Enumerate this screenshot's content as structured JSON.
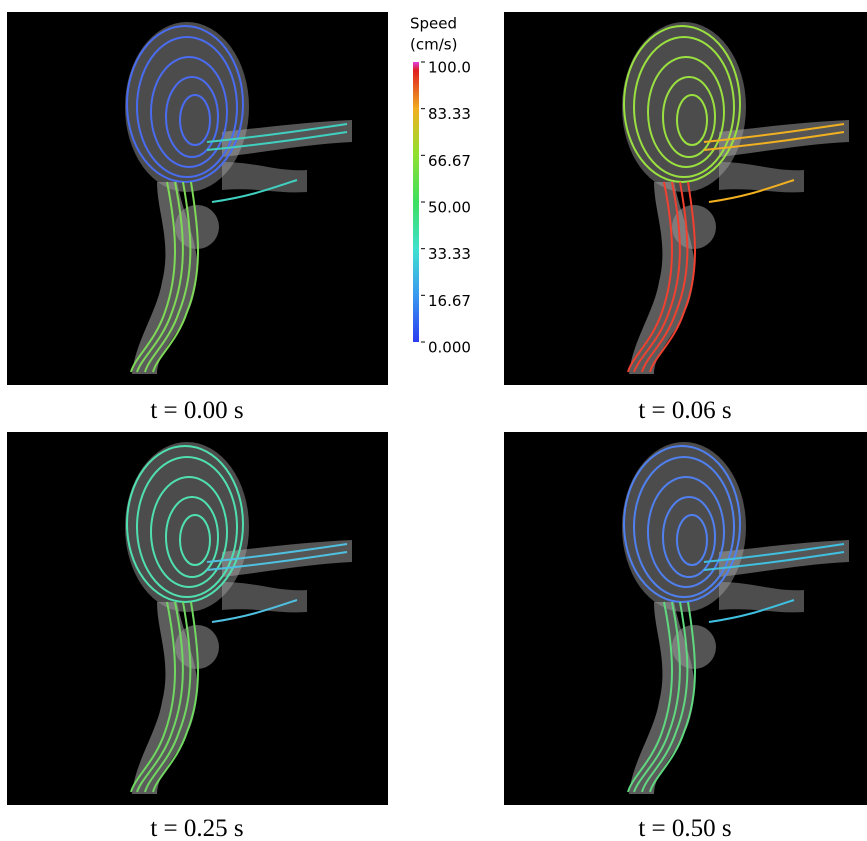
{
  "panels": [
    {
      "caption": "t = 0.00 s"
    },
    {
      "caption": "t = 0.06 s"
    },
    {
      "caption": "t = 0.25 s"
    },
    {
      "caption": "t = 0.50 s"
    }
  ],
  "colorbar": {
    "title": [
      "Speed",
      "(cm/s)"
    ],
    "lim": [
      0,
      100
    ],
    "ticks": [
      {
        "value": 100,
        "label": "100.0"
      },
      {
        "value": 83.33,
        "label": "83.33"
      },
      {
        "value": 66.67,
        "label": "66.67"
      },
      {
        "value": 50,
        "label": "50.00"
      },
      {
        "value": 33.33,
        "label": "33.33"
      },
      {
        "value": 16.67,
        "label": "16.67"
      },
      {
        "value": 0,
        "label": "0.000"
      }
    ]
  }
}
